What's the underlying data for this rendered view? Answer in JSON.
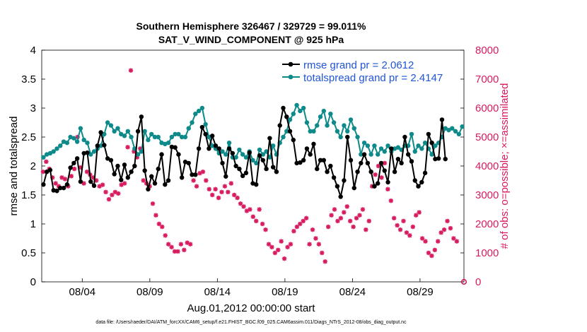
{
  "chart_data": {
    "type": "line",
    "title_line1": "Southern Hemisphere 326467 / 329729 = 99.011%",
    "title_line2": "SAT_V_WIND_COMPONENT @ 925 hPa",
    "xlabel": "Aug.01,2012 00:00:00 start",
    "ylabel_left": "rmse and totalspread",
    "ylabel_right": "# of obs: o=possible; ×=assimilated",
    "footnote": "data file: /Users/raeder/DAI/ATM_forcXX/CAM6_setup/f.e21.FHIST_BGC.f09_025.CAM6assim.011/Diags_NTrS_2012-08/obs_diag_output.nc",
    "x_ticks": [
      {
        "day": 4,
        "label": "08/04"
      },
      {
        "day": 9,
        "label": "08/09"
      },
      {
        "day": 14,
        "label": "08/14"
      },
      {
        "day": 19,
        "label": "08/19"
      },
      {
        "day": 24,
        "label": "08/24"
      },
      {
        "day": 29,
        "label": "08/29"
      }
    ],
    "xlim": [
      1,
      32.25
    ],
    "ylim_left": [
      0,
      4
    ],
    "yticks_left": [
      "0",
      "0.5",
      "1",
      "1.5",
      "2",
      "2.5",
      "3",
      "3.5",
      "4"
    ],
    "ylim_right": [
      0,
      8000
    ],
    "yticks_right": [
      "0",
      "1000",
      "2000",
      "3000",
      "4000",
      "5000",
      "6000",
      "7000",
      "8000"
    ],
    "samples_per_day": 4,
    "series": [
      {
        "name": "rmse",
        "legend": "rmse grand pr = 2.0612",
        "color": "#000000",
        "values": [
          1.68,
          1.9,
          1.93,
          1.58,
          1.57,
          1.62,
          1.62,
          1.68,
          1.97,
          2.05,
          2.13,
          1.73,
          2.22,
          2.23,
          1.73,
          1.66,
          2.35,
          2.58,
          2.36,
          2.13,
          2.1,
          1.86,
          2.0,
          1.76,
          2.02,
          1.8,
          1.9,
          2.0,
          2.6,
          2.85,
          1.92,
          1.6,
          1.82,
          1.7,
          1.95,
          2.2,
          1.68,
          1.75,
          2.33,
          2.32,
          2.2,
          1.8,
          2.07,
          2.05,
          1.85,
          1.85,
          2.3,
          2.67,
          2.55,
          2.3,
          2.52,
          2.35,
          2.3,
          2.05,
          1.82,
          2.3,
          2.22,
          2.0,
          1.95,
          1.83,
          1.88,
          2.23,
          1.7,
          1.68,
          2.18,
          2.1,
          1.95,
          2.48,
          1.98,
          1.9,
          2.7,
          3.0,
          2.85,
          2.6,
          2.45,
          2.05,
          2.06,
          2.1,
          2.3,
          2.2,
          2.38,
          1.95,
          2.1,
          2.1,
          1.9,
          2.0,
          1.8,
          1.65,
          1.47,
          1.75,
          2.5,
          2.1,
          1.62,
          1.9,
          2.05,
          2.2,
          2.05,
          1.9,
          1.65,
          1.7,
          2.05,
          1.92,
          1.72,
          2.3,
          1.9,
          2.12,
          2.05,
          2.5,
          2.2,
          2.08,
          1.75,
          1.65,
          1.72,
          1.88,
          2.55,
          2.4,
          2.12,
          2.13,
          2.8,
          2.12
        ]
      },
      {
        "name": "totalspread",
        "legend": "totalspread grand pr = 2.4147",
        "color": "#0e8a8a",
        "values": [
          2.15,
          2.2,
          2.22,
          2.25,
          2.3,
          2.35,
          2.42,
          2.4,
          2.5,
          2.48,
          2.42,
          2.65,
          2.45,
          2.4,
          2.2,
          2.25,
          2.3,
          2.35,
          2.55,
          2.75,
          2.7,
          2.6,
          2.65,
          2.55,
          2.52,
          2.6,
          2.5,
          2.3,
          2.2,
          2.25,
          2.6,
          2.45,
          2.55,
          2.5,
          2.5,
          2.4,
          2.38,
          2.4,
          2.5,
          2.55,
          2.55,
          2.5,
          2.5,
          2.65,
          2.75,
          2.9,
          2.95,
          3.0,
          2.72,
          2.5,
          2.35,
          2.3,
          2.22,
          2.25,
          2.2,
          2.4,
          2.15,
          2.15,
          2.28,
          2.2,
          2.15,
          2.25,
          2.1,
          2.05,
          2.28,
          2.2,
          2.25,
          2.15,
          2.35,
          2.2,
          2.4,
          2.5,
          2.6,
          2.8,
          2.9,
          3.05,
          2.95,
          3.0,
          2.75,
          2.6,
          2.6,
          2.7,
          2.85,
          2.95,
          2.7,
          2.9,
          2.75,
          2.6,
          2.5,
          2.7,
          2.6,
          2.8,
          2.65,
          2.5,
          2.2,
          2.4,
          2.35,
          2.2,
          2.35,
          2.2,
          2.3,
          2.25,
          2.35,
          2.25,
          2.3,
          2.32,
          2.28,
          2.35,
          2.35,
          2.55,
          2.25,
          2.35,
          2.3,
          2.4,
          2.3,
          2.2,
          2.35,
          2.4,
          2.5,
          2.65,
          2.62,
          2.65,
          2.6,
          2.55,
          2.68
        ]
      }
    ],
    "obs_assimilated": {
      "name": "assimilated",
      "color": "#d81b60",
      "values": [
        3800,
        4150,
        3900,
        3600,
        3400,
        3300,
        3600,
        3550,
        3300,
        3650,
        3900,
        5000,
        3950,
        3400,
        3800,
        3700,
        3600,
        3500,
        3300,
        3350,
        3100,
        2850,
        3000,
        3100,
        3050,
        3350,
        3400,
        4650,
        7300,
        4500,
        4300,
        4600,
        3500,
        3400,
        3300,
        2700,
        2300,
        2000,
        1900,
        1600,
        1300,
        1200,
        1050,
        1050,
        1300,
        1100,
        1350,
        1300,
        3500,
        3300,
        3750,
        3800,
        3500,
        3200,
        3000,
        3200,
        2900,
        3100,
        3300,
        3100,
        3400,
        3000,
        2900,
        2700,
        2600,
        2450,
        2500,
        2250,
        2100,
        2500,
        2000,
        1800,
        1300,
        1200,
        1000,
        1100,
        1400,
        800,
        1200,
        1300,
        1750,
        1900,
        2000,
        2100,
        2200,
        1300,
        1800,
        1500,
        1300,
        1000,
        700,
        1900,
        2300,
        2500,
        2100,
        2200,
        2400,
        2600,
        2100,
        1900,
        2200,
        2300,
        2500,
        1800,
        2100,
        3300,
        3700,
        4000,
        3600,
        4100,
        3200,
        2800,
        2200,
        1950,
        1800,
        2100,
        1700,
        1600,
        1900,
        2300,
        2400,
        1500,
        1400,
        1000,
        900,
        1100,
        1400,
        1700,
        1800,
        2100,
        1850,
        1500,
        1400
      ]
    },
    "obs_possible_last": {
      "label_value": 0,
      "color": "#d81b60"
    }
  }
}
